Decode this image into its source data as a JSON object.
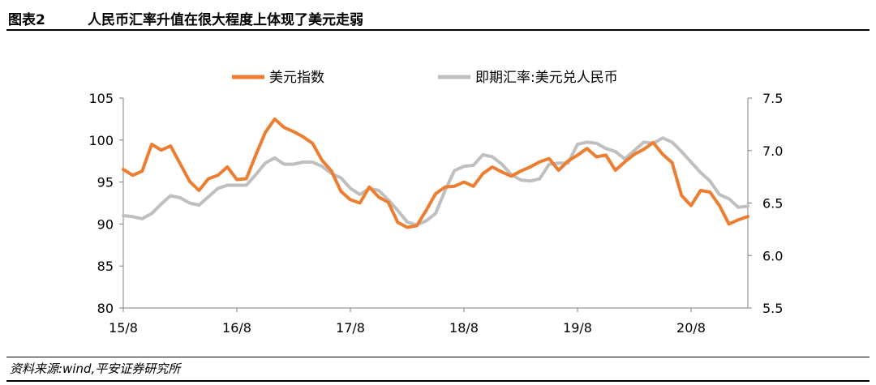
{
  "header": {
    "figure_label": "图表2",
    "title": "人民币汇率升值在很大程度上体现了美元走弱"
  },
  "footer": {
    "source": "资料来源:wind,平安证券研究所"
  },
  "colors": {
    "dollar_index": "#ED7D31",
    "usdcny": "#BFBFBF",
    "axis": "#7F7F7F"
  },
  "chart_data": {
    "type": "line",
    "title": "",
    "x_ticks": [
      "15/8",
      "16/8",
      "17/8",
      "18/8",
      "19/8",
      "20/8"
    ],
    "x_range": [
      "2015-08",
      "2021-02"
    ],
    "y_left": {
      "min": 80,
      "max": 105,
      "ticks": [
        80,
        85,
        90,
        95,
        100,
        105
      ]
    },
    "y_right": {
      "min": 5.5,
      "max": 7.5,
      "ticks": [
        "5.5",
        "6.0",
        "6.5",
        "7.0",
        "7.5"
      ]
    },
    "legend_position": "top-center",
    "series": [
      {
        "name": "美元指数",
        "axis": "left",
        "color": "#ED7D31",
        "x": [
          "2015-08",
          "2015-09",
          "2015-10",
          "2015-11",
          "2015-12",
          "2016-01",
          "2016-02",
          "2016-03",
          "2016-04",
          "2016-05",
          "2016-06",
          "2016-07",
          "2016-08",
          "2016-09",
          "2016-10",
          "2016-11",
          "2016-12",
          "2017-01",
          "2017-02",
          "2017-03",
          "2017-04",
          "2017-05",
          "2017-06",
          "2017-07",
          "2017-08",
          "2017-09",
          "2017-10",
          "2017-11",
          "2017-12",
          "2018-01",
          "2018-02",
          "2018-03",
          "2018-04",
          "2018-05",
          "2018-06",
          "2018-07",
          "2018-08",
          "2018-09",
          "2018-10",
          "2018-11",
          "2018-12",
          "2019-01",
          "2019-02",
          "2019-03",
          "2019-04",
          "2019-05",
          "2019-06",
          "2019-07",
          "2019-08",
          "2019-09",
          "2019-10",
          "2019-11",
          "2019-12",
          "2020-01",
          "2020-02",
          "2020-03",
          "2020-04",
          "2020-05",
          "2020-06",
          "2020-07",
          "2020-08",
          "2020-09",
          "2020-10",
          "2020-11",
          "2020-12",
          "2021-01",
          "2021-02"
        ],
        "values": [
          96.5,
          95.8,
          96.3,
          99.5,
          98.8,
          99.3,
          97.2,
          95.1,
          94.0,
          95.4,
          95.8,
          96.8,
          95.3,
          95.4,
          98.2,
          100.9,
          102.5,
          101.5,
          101.0,
          100.4,
          99.6,
          97.6,
          96.3,
          93.9,
          92.9,
          92.5,
          94.4,
          93.2,
          92.6,
          90.2,
          89.6,
          89.8,
          91.6,
          93.6,
          94.4,
          94.5,
          95.0,
          94.5,
          96.0,
          96.8,
          96.2,
          95.7,
          96.3,
          96.8,
          97.4,
          97.8,
          96.4,
          97.5,
          98.2,
          99.0,
          98.0,
          98.2,
          96.4,
          97.4,
          98.3,
          98.9,
          99.7,
          98.3,
          97.3,
          93.4,
          92.2,
          94.0,
          93.8,
          92.2,
          90.0,
          90.5,
          90.9
        ]
      },
      {
        "name": "即期汇率:美元兑人民币",
        "axis": "right",
        "color": "#BFBFBF",
        "x": [
          "2015-08",
          "2015-09",
          "2015-10",
          "2015-11",
          "2015-12",
          "2016-01",
          "2016-02",
          "2016-03",
          "2016-04",
          "2016-05",
          "2016-06",
          "2016-07",
          "2016-08",
          "2016-09",
          "2016-10",
          "2016-11",
          "2016-12",
          "2017-01",
          "2017-02",
          "2017-03",
          "2017-04",
          "2017-05",
          "2017-06",
          "2017-07",
          "2017-08",
          "2017-09",
          "2017-10",
          "2017-11",
          "2017-12",
          "2018-01",
          "2018-02",
          "2018-03",
          "2018-04",
          "2018-05",
          "2018-06",
          "2018-07",
          "2018-08",
          "2018-09",
          "2018-10",
          "2018-11",
          "2018-12",
          "2019-01",
          "2019-02",
          "2019-03",
          "2019-04",
          "2019-05",
          "2019-06",
          "2019-07",
          "2019-08",
          "2019-09",
          "2019-10",
          "2019-11",
          "2019-12",
          "2020-01",
          "2020-02",
          "2020-03",
          "2020-04",
          "2020-05",
          "2020-06",
          "2020-07",
          "2020-08",
          "2020-09",
          "2020-10",
          "2020-11",
          "2020-12",
          "2021-01",
          "2021-02"
        ],
        "values": [
          6.38,
          6.37,
          6.35,
          6.4,
          6.49,
          6.57,
          6.55,
          6.5,
          6.48,
          6.56,
          6.64,
          6.67,
          6.67,
          6.67,
          6.77,
          6.88,
          6.93,
          6.87,
          6.87,
          6.89,
          6.89,
          6.85,
          6.78,
          6.74,
          6.64,
          6.58,
          6.64,
          6.62,
          6.53,
          6.43,
          6.32,
          6.29,
          6.33,
          6.4,
          6.62,
          6.81,
          6.85,
          6.86,
          6.96,
          6.94,
          6.87,
          6.77,
          6.72,
          6.71,
          6.73,
          6.87,
          6.88,
          6.88,
          7.06,
          7.08,
          7.07,
          7.02,
          6.99,
          6.92,
          7.0,
          7.08,
          7.07,
          7.12,
          7.08,
          6.99,
          6.89,
          6.79,
          6.71,
          6.58,
          6.54,
          6.46,
          6.47
        ]
      }
    ]
  }
}
